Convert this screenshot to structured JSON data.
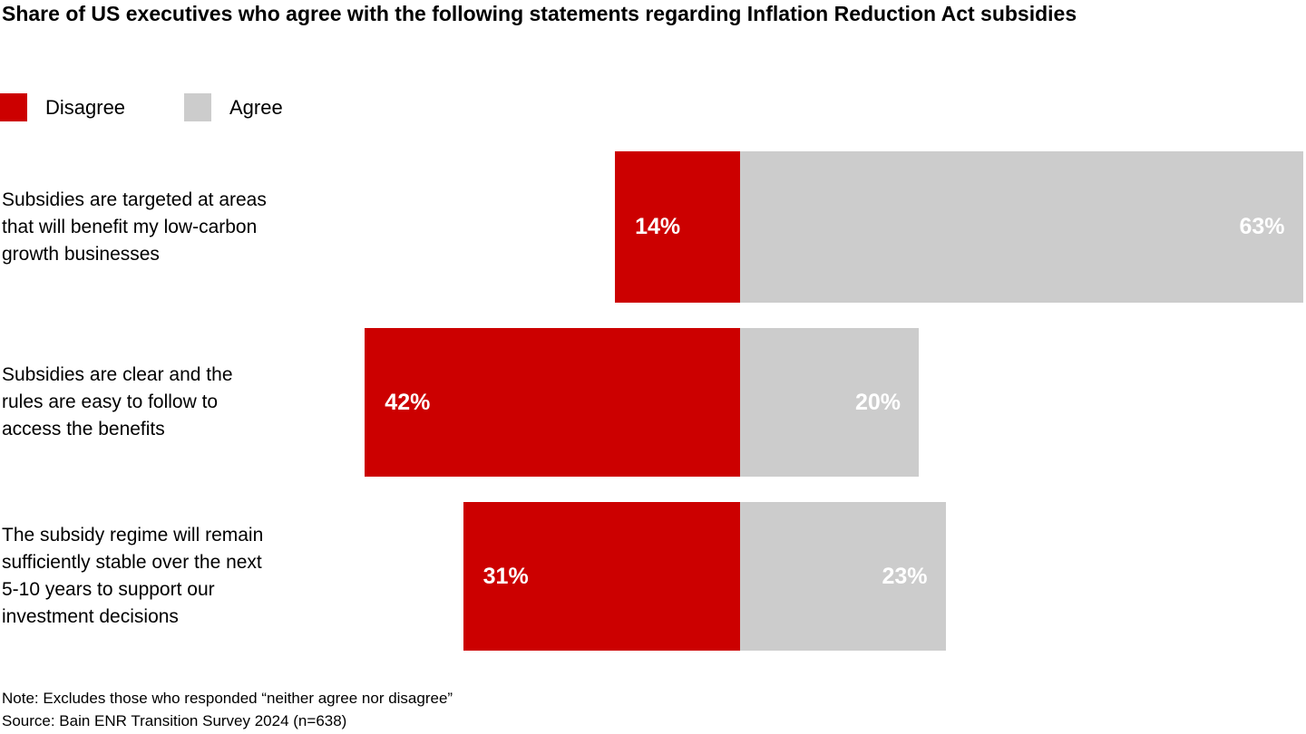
{
  "chart_data": {
    "type": "bar",
    "variant": "horizontal-diverging-stacked",
    "title": "Share of US executives who agree with the following statements regarding Inflation Reduction Act subsidies",
    "legend": {
      "position": "top-left",
      "entries": [
        {
          "name": "Disagree",
          "color": "#CC0000"
        },
        {
          "name": "Agree",
          "color": "#CCCCCC"
        }
      ]
    },
    "categories": [
      "Subsidies are targeted at areas that will benefit my low-carbon growth businesses",
      "Subsidies are clear and the rules are easy to follow to access the benefits",
      "The subsidy regime will remain sufficiently stable over the next 5-10 years to support our investment decisions"
    ],
    "category_lines": [
      [
        "Subsidies are targeted at areas",
        "that will benefit my low-carbon",
        "growth businesses"
      ],
      [
        "Subsidies are clear and the",
        "rules are easy to follow to",
        "access the benefits"
      ],
      [
        "The subsidy regime will remain",
        "sufficiently stable over the next",
        "5-10 years to support our",
        "investment decisions"
      ]
    ],
    "series": [
      {
        "name": "Disagree",
        "color": "#CC0000",
        "values": [
          14,
          42,
          31
        ]
      },
      {
        "name": "Agree",
        "color": "#CCCCCC",
        "values": [
          63,
          20,
          23
        ]
      }
    ],
    "value_suffix": "%",
    "value_label_color": "#FFFFFF",
    "axis": {
      "unit": "percent",
      "grid": false,
      "ticks": "none",
      "pivot": "shared baseline between Disagree (left) and Agree (right)"
    }
  },
  "footer": {
    "note": "Note: Excludes those who responded “neither agree nor disagree”",
    "source": "Source: Bain ENR Transition Survey 2024 (n=638)"
  }
}
